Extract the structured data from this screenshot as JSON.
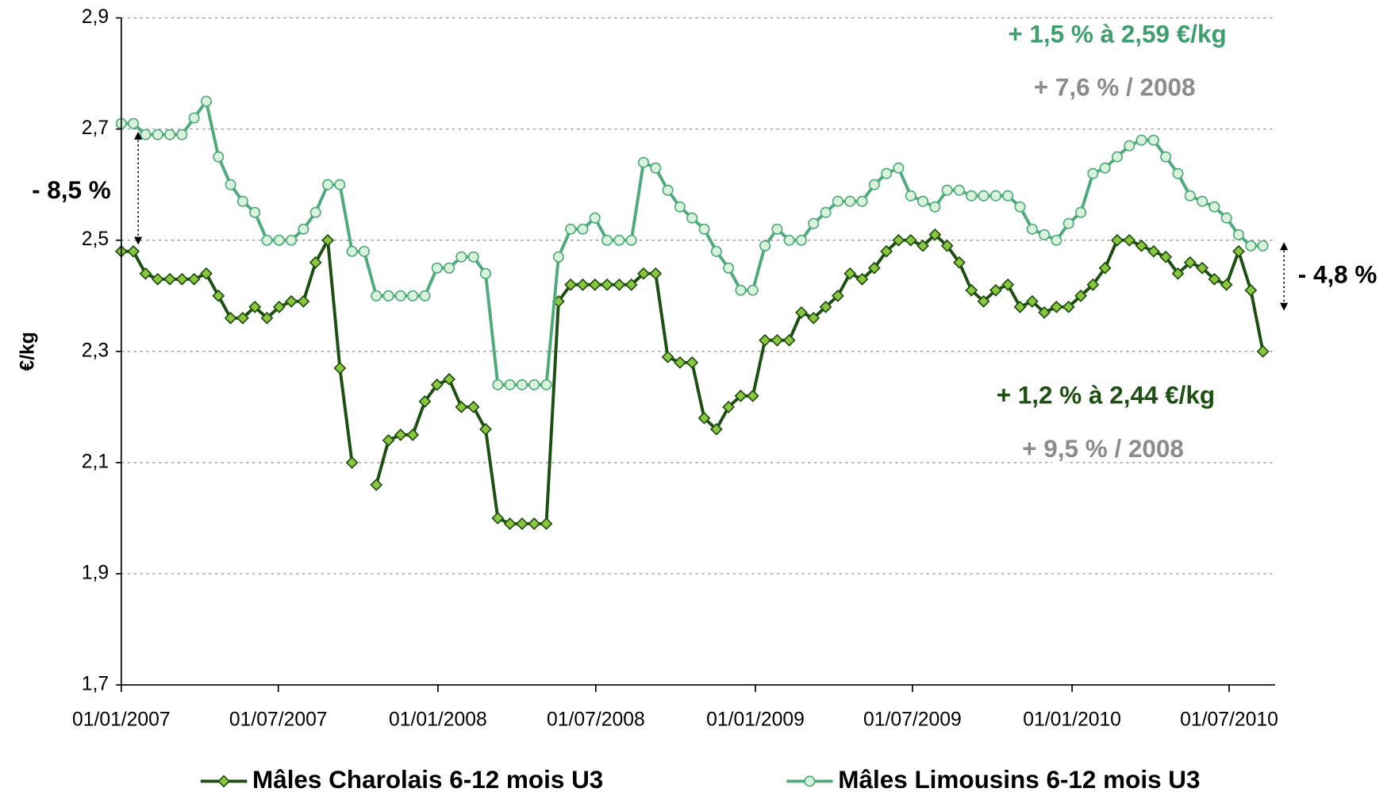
{
  "chart_data": {
    "type": "line",
    "y_label": "€/kg",
    "x": [
      "2007-01-01",
      "2007-01-15",
      "2007-01-29",
      "2007-02-12",
      "2007-02-26",
      "2007-03-12",
      "2007-03-26",
      "2007-04-09",
      "2007-04-23",
      "2007-05-07",
      "2007-05-21",
      "2007-06-04",
      "2007-06-18",
      "2007-07-02",
      "2007-07-16",
      "2007-07-30",
      "2007-08-13",
      "2007-08-27",
      "2007-09-10",
      "2007-09-24",
      "2007-10-08",
      "2007-10-22",
      "2007-11-05",
      "2007-11-19",
      "2007-12-03",
      "2007-12-17",
      "2007-12-31",
      "2008-01-14",
      "2008-01-28",
      "2008-02-11",
      "2008-02-25",
      "2008-03-10",
      "2008-03-24",
      "2008-04-07",
      "2008-04-21",
      "2008-05-05",
      "2008-05-19",
      "2008-06-02",
      "2008-06-16",
      "2008-06-30",
      "2008-07-14",
      "2008-07-28",
      "2008-08-11",
      "2008-08-25",
      "2008-09-08",
      "2008-09-22",
      "2008-10-06",
      "2008-10-20",
      "2008-11-03",
      "2008-11-17",
      "2008-12-01",
      "2008-12-15",
      "2008-12-29",
      "2009-01-12",
      "2009-01-26",
      "2009-02-09",
      "2009-02-23",
      "2009-03-09",
      "2009-03-23",
      "2009-04-06",
      "2009-04-20",
      "2009-05-04",
      "2009-05-18",
      "2009-06-01",
      "2009-06-15",
      "2009-06-29",
      "2009-07-13",
      "2009-07-27",
      "2009-08-10",
      "2009-08-24",
      "2009-09-07",
      "2009-09-21",
      "2009-10-05",
      "2009-10-19",
      "2009-11-02",
      "2009-11-16",
      "2009-11-30",
      "2009-12-14",
      "2009-12-28",
      "2010-01-11",
      "2010-01-25",
      "2010-02-08",
      "2010-02-22",
      "2010-03-08",
      "2010-03-22",
      "2010-04-05",
      "2010-04-19",
      "2010-05-03",
      "2010-05-17",
      "2010-05-31",
      "2010-06-14",
      "2010-06-28",
      "2010-07-12",
      "2010-07-26",
      "2010-08-09"
    ],
    "series": [
      {
        "name": "Mâles Charolais 6-12 mois U3",
        "color": "#1d4f12",
        "marker": "diamond",
        "marker_color": "#8cc63f",
        "values": [
          2.48,
          2.48,
          2.44,
          2.43,
          2.43,
          2.43,
          2.43,
          2.44,
          2.4,
          2.36,
          2.36,
          2.38,
          2.36,
          2.38,
          2.39,
          2.39,
          2.46,
          2.5,
          2.27,
          2.1,
          null,
          2.06,
          2.14,
          2.15,
          2.15,
          2.21,
          2.24,
          2.25,
          2.2,
          2.2,
          2.16,
          2.0,
          1.99,
          1.99,
          1.99,
          1.99,
          2.39,
          2.42,
          2.42,
          2.42,
          2.42,
          2.42,
          2.42,
          2.44,
          2.44,
          2.29,
          2.28,
          2.28,
          2.18,
          2.16,
          2.2,
          2.22,
          2.22,
          2.32,
          2.32,
          2.32,
          2.37,
          2.36,
          2.38,
          2.4,
          2.44,
          2.43,
          2.45,
          2.48,
          2.5,
          2.5,
          2.49,
          2.51,
          2.49,
          2.46,
          2.41,
          2.39,
          2.41,
          2.42,
          2.38,
          2.39,
          2.37,
          2.38,
          2.38,
          2.4,
          2.42,
          2.45,
          2.5,
          2.5,
          2.49,
          2.48,
          2.47,
          2.44,
          2.46,
          2.45,
          2.43,
          2.42,
          2.48,
          2.41,
          2.3
        ]
      },
      {
        "name": "Mâles Limousins 6-12 mois U3",
        "color": "#4faa7c",
        "marker": "circle",
        "marker_color": "#d9f2dc",
        "values": [
          2.71,
          2.71,
          2.69,
          2.69,
          2.69,
          2.69,
          2.72,
          2.75,
          2.65,
          2.6,
          2.57,
          2.55,
          2.5,
          2.5,
          2.5,
          2.52,
          2.55,
          2.6,
          2.6,
          2.48,
          2.48,
          2.4,
          2.4,
          2.4,
          2.4,
          2.4,
          2.45,
          2.45,
          2.47,
          2.47,
          2.44,
          2.24,
          2.24,
          2.24,
          2.24,
          2.24,
          2.47,
          2.52,
          2.52,
          2.54,
          2.5,
          2.5,
          2.5,
          2.64,
          2.63,
          2.59,
          2.56,
          2.54,
          2.52,
          2.48,
          2.45,
          2.41,
          2.41,
          2.49,
          2.52,
          2.5,
          2.5,
          2.53,
          2.55,
          2.57,
          2.57,
          2.57,
          2.6,
          2.62,
          2.63,
          2.58,
          2.57,
          2.56,
          2.59,
          2.59,
          2.58,
          2.58,
          2.58,
          2.58,
          2.56,
          2.52,
          2.51,
          2.5,
          2.53,
          2.55,
          2.62,
          2.63,
          2.65,
          2.67,
          2.68,
          2.68,
          2.65,
          2.62,
          2.58,
          2.57,
          2.56,
          2.54,
          2.51,
          2.49,
          2.49
        ]
      }
    ],
    "xlim": [
      "2007-01-01",
      "2010-08-23"
    ],
    "xticks": [
      {
        "value": "2007-01-01",
        "label": "01/01/2007"
      },
      {
        "value": "2007-07-01",
        "label": "01/07/2007"
      },
      {
        "value": "2008-01-01",
        "label": "01/01/2008"
      },
      {
        "value": "2008-07-01",
        "label": "01/07/2008"
      },
      {
        "value": "2009-01-01",
        "label": "01/01/2009"
      },
      {
        "value": "2009-07-01",
        "label": "01/07/2009"
      },
      {
        "value": "2010-01-01",
        "label": "01/01/2010"
      },
      {
        "value": "2010-07-01",
        "label": "01/07/2010"
      }
    ],
    "ylim": [
      1.7,
      2.9
    ],
    "yticks": [
      {
        "value": 1.7,
        "label": "1,7"
      },
      {
        "value": 1.9,
        "label": "1,9"
      },
      {
        "value": 2.1,
        "label": "2,1"
      },
      {
        "value": 2.3,
        "label": "2,3"
      },
      {
        "value": 2.5,
        "label": "2,5"
      },
      {
        "value": 2.7,
        "label": "2,7"
      },
      {
        "value": 2.9,
        "label": "2,9"
      }
    ],
    "grid": true,
    "legend": "bottom",
    "annotations": [
      {
        "text": "+ 1,5 % à 2,59 €/kg",
        "color": "#3f9e6e"
      },
      {
        "text": "+ 7,6 % / 2008",
        "color": "#8c8c8c"
      },
      {
        "text": "+ 1,2 % à 2,44 €/kg",
        "color": "#1d4f12"
      },
      {
        "text": "+ 9,5 % / 2008",
        "color": "#8c8c8c"
      },
      {
        "text": "- 8,5 %",
        "color": "#000000"
      },
      {
        "text": "- 4,8 %",
        "color": "#000000"
      }
    ]
  }
}
